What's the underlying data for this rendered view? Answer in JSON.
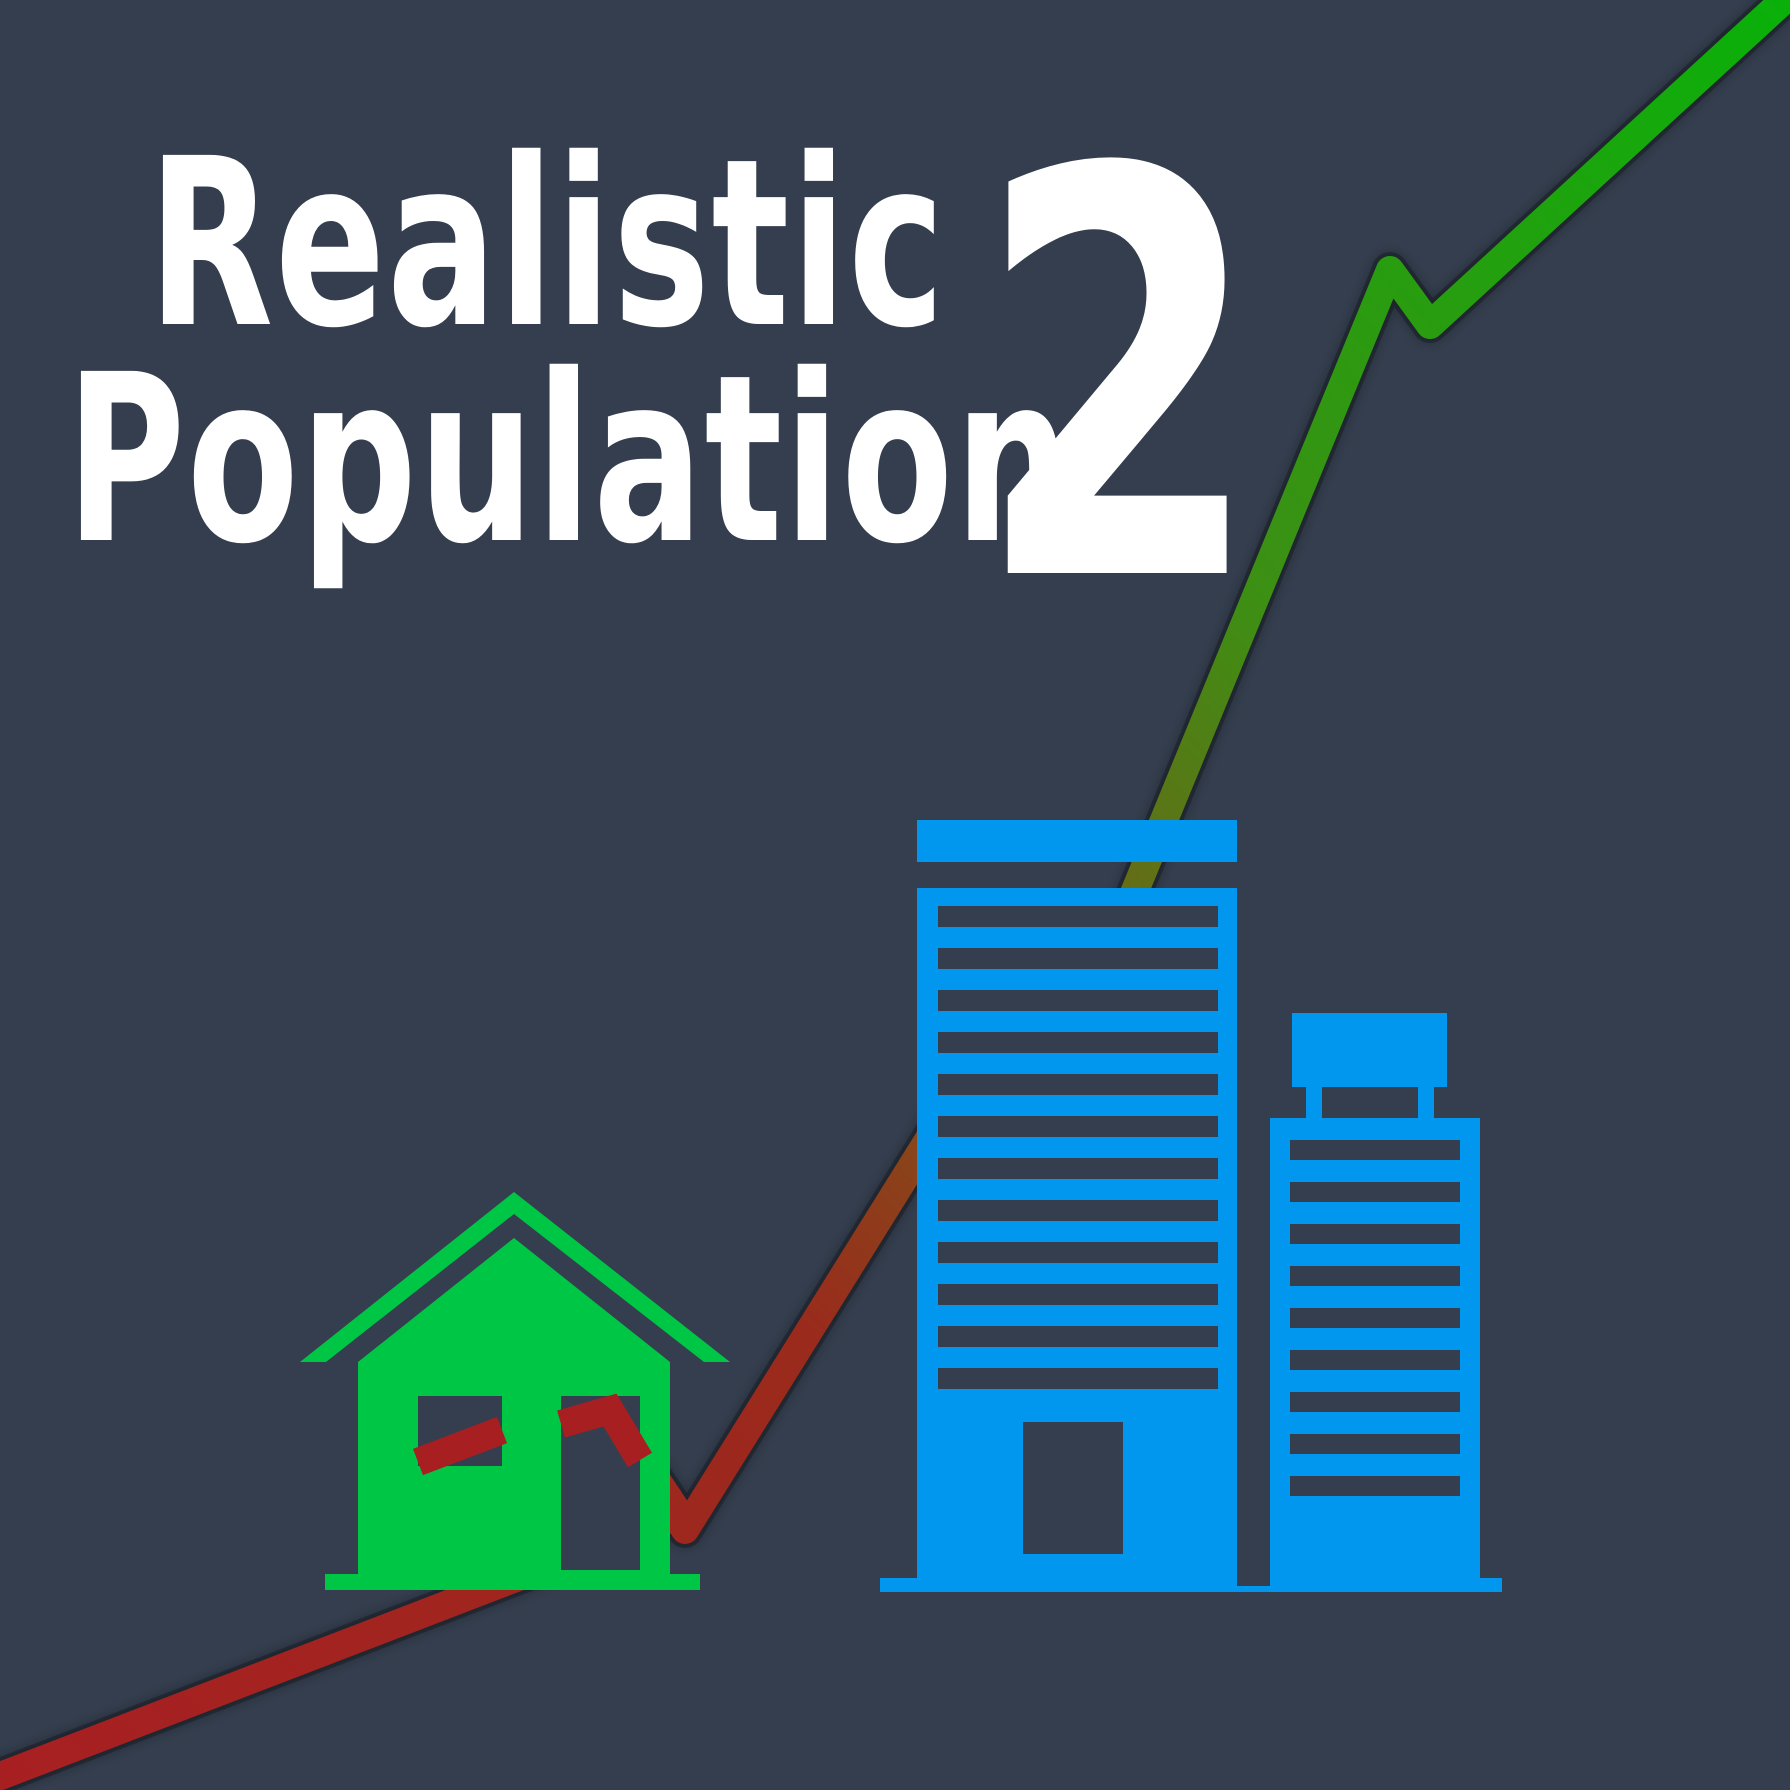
{
  "title": {
    "line1": "Realistic",
    "line2": "Population",
    "number": "2"
  },
  "colors": {
    "background": "#343e4e",
    "title": "#ffffff",
    "trend_low": "#a81f22",
    "trend_mid": "#7a5a18",
    "trend_high": "#09b109",
    "house": "#00c646",
    "buildings": "#0197ee"
  },
  "icons": {
    "trend": "trend-line-icon",
    "house": "house-icon",
    "tall_building": "office-building-icon",
    "short_building": "apartment-building-icon"
  }
}
